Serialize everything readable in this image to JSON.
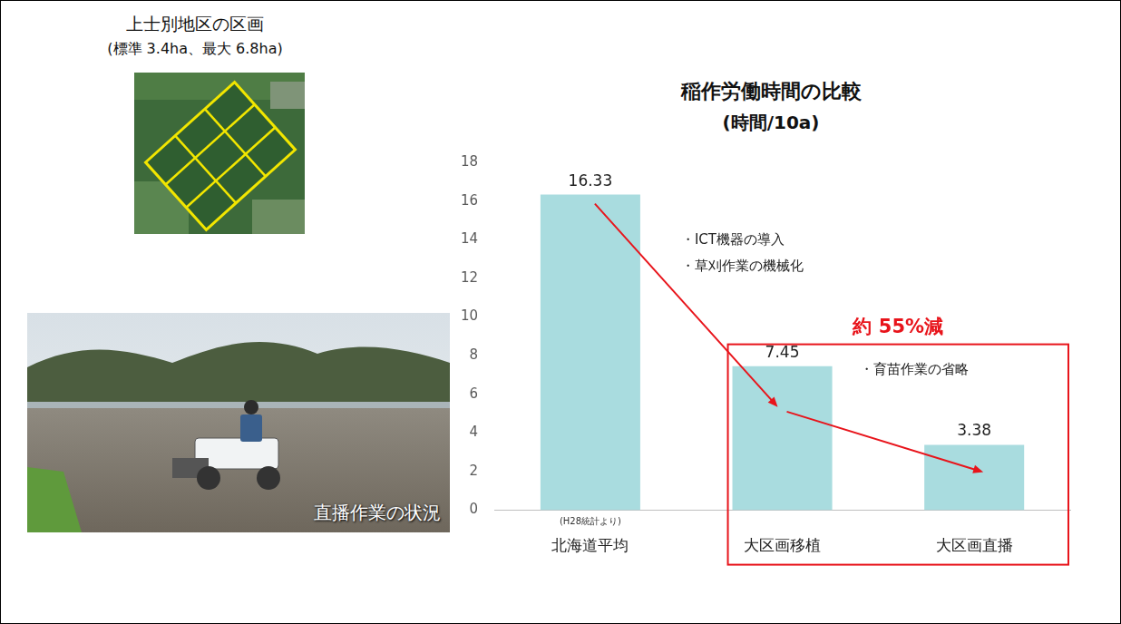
{
  "panels": [
    {
      "title": "上士別地区の区画",
      "subtitle": "(標準 3.4ha、最大 6.8ha)"
    },
    {
      "caption": "直播作業の状況"
    }
  ],
  "chart_data": {
    "type": "bar",
    "title": "稲作労働時間の比較",
    "subtitle": "(時間/10a)",
    "categories": [
      "北海道平均",
      "大区画移植",
      "大区画直播"
    ],
    "values": [
      16.33,
      7.45,
      3.38
    ],
    "color": "#a9dcdf",
    "ylim": [
      0,
      18
    ],
    "yticks": [
      0,
      2,
      4,
      6,
      8,
      10,
      12,
      14,
      16,
      18
    ],
    "grid": false,
    "data_labels": true,
    "annotations": [
      "(H28統計より)",
      "・ICT機器の導入",
      "・草刈作業の機械化",
      "約 55%減",
      "・育苗作業の省略"
    ]
  }
}
